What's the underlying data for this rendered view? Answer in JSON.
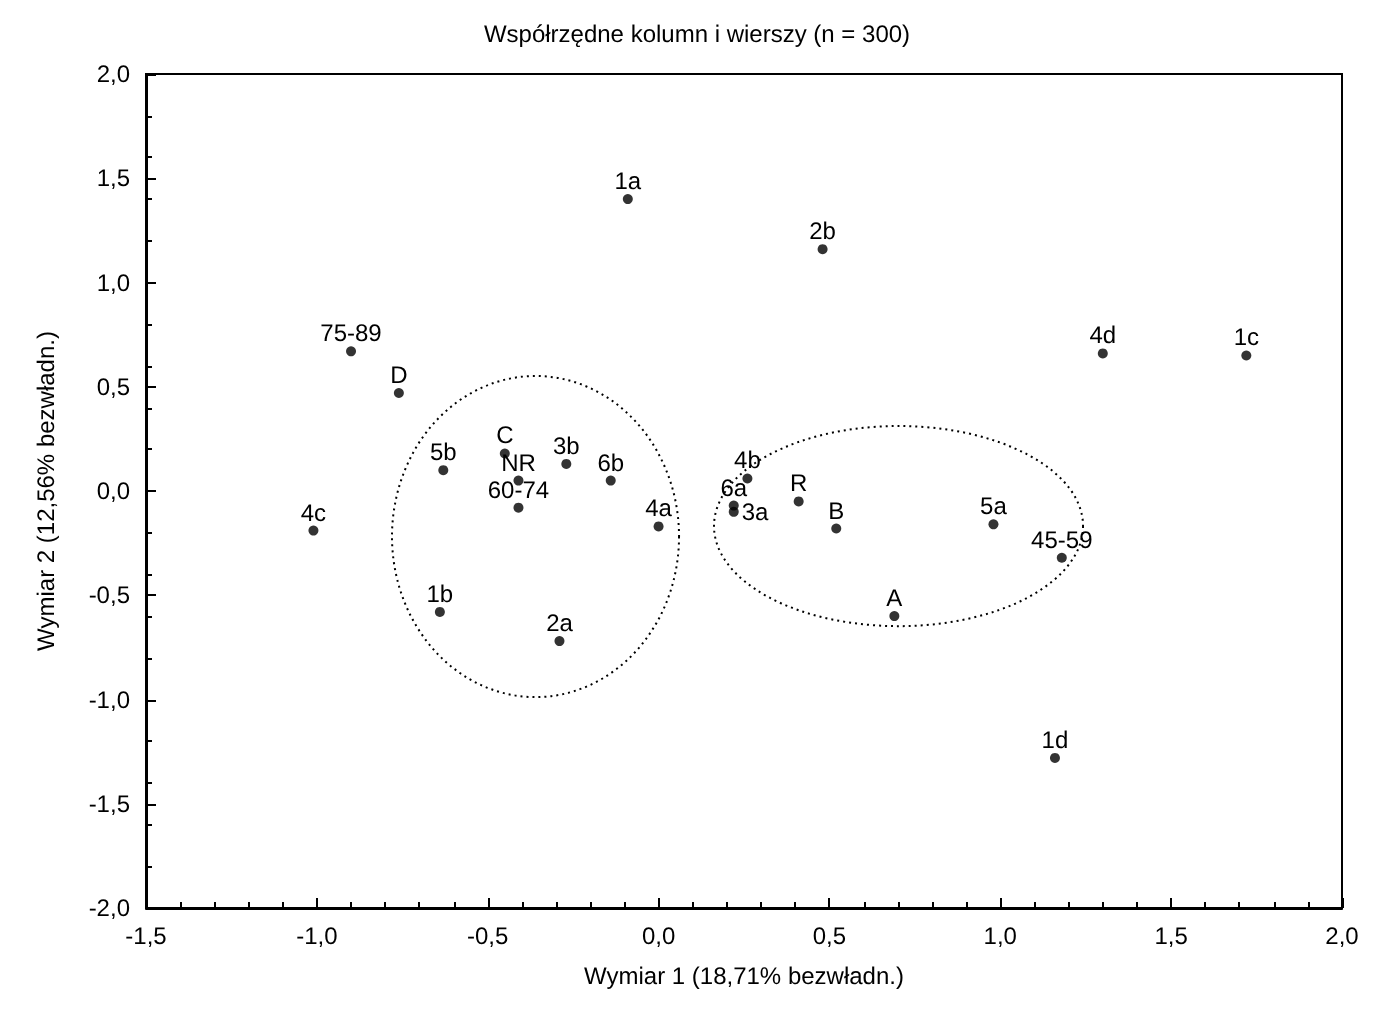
{
  "chart_data": {
    "type": "scatter",
    "title": "Współrzędne kolumn i wierszy (n = 300)",
    "xlabel": "Wymiar 1 (18,71% bezwładn.)",
    "ylabel": "Wymiar 2 (12,56% bezwładn.)",
    "xlim": [
      -1.5,
      2.0
    ],
    "ylim": [
      -2.0,
      2.0
    ],
    "xticks": [
      {
        "value": -1.5,
        "label": "-1,5"
      },
      {
        "value": -1.0,
        "label": "-1,0"
      },
      {
        "value": -0.5,
        "label": "-0,5"
      },
      {
        "value": 0,
        "label": "0,0"
      },
      {
        "value": 0.5,
        "label": "0,5"
      },
      {
        "value": 1.0,
        "label": "1,0"
      },
      {
        "value": 1.5,
        "label": "1,5"
      },
      {
        "value": 2.0,
        "label": "2,0"
      }
    ],
    "yticks": [
      {
        "value": -2.0,
        "label": "-2,0"
      },
      {
        "value": -1.5,
        "label": "-1,5"
      },
      {
        "value": -1.0,
        "label": "-1,0"
      },
      {
        "value": -0.5,
        "label": "-0,5"
      },
      {
        "value": 0,
        "label": "0,0"
      },
      {
        "value": 0.5,
        "label": "0,5"
      },
      {
        "value": 1.0,
        "label": "1,0"
      },
      {
        "value": 1.5,
        "label": "1,5"
      },
      {
        "value": 2.0,
        "label": "2,0"
      }
    ],
    "grid": false,
    "marker": "circle",
    "series": [
      {
        "color": "#000000",
        "x": [
          -0.09,
          0.48,
          -0.9,
          -0.76,
          -0.63,
          -0.45,
          -0.41,
          -0.41,
          -0.27,
          -0.14,
          0.0,
          -1.01,
          -0.64,
          -0.29,
          0.26,
          0.22,
          0.22,
          0.41,
          0.52,
          0.98,
          1.18,
          0.69,
          1.3,
          1.72,
          1.16
        ],
        "values": [
          1.4,
          1.16,
          0.67,
          0.47,
          0.1,
          0.18,
          0.05,
          -0.08,
          0.13,
          0.05,
          -0.17,
          -0.19,
          -0.58,
          -0.72,
          0.06,
          -0.07,
          -0.1,
          -0.05,
          -0.18,
          -0.16,
          -0.32,
          -0.6,
          0.66,
          0.65,
          -1.28
        ]
      }
    ],
    "annotations": [
      {
        "text": "1a",
        "x": -0.09,
        "y": 1.4
      },
      {
        "text": "2b",
        "x": 0.48,
        "y": 1.16
      },
      {
        "text": "75-89",
        "x": -0.9,
        "y": 0.67
      },
      {
        "text": "D",
        "x": -0.76,
        "y": 0.47
      },
      {
        "text": "5b",
        "x": -0.63,
        "y": 0.1
      },
      {
        "text": "C",
        "x": -0.45,
        "y": 0.18
      },
      {
        "text": "NR",
        "x": -0.41,
        "y": 0.05
      },
      {
        "text": "60-74",
        "x": -0.41,
        "y": -0.08
      },
      {
        "text": "3b",
        "x": -0.27,
        "y": 0.13
      },
      {
        "text": "6b",
        "x": -0.14,
        "y": 0.05
      },
      {
        "text": "4a",
        "x": 0.0,
        "y": -0.17
      },
      {
        "text": "4c",
        "x": -1.01,
        "y": -0.19
      },
      {
        "text": "1b",
        "x": -0.64,
        "y": -0.58
      },
      {
        "text": "2a",
        "x": -0.29,
        "y": -0.72
      },
      {
        "text": "4b",
        "x": 0.26,
        "y": 0.06
      },
      {
        "text": "6a",
        "x": 0.22,
        "y": -0.07
      },
      {
        "text": "3a",
        "x": 0.22,
        "y": -0.1
      },
      {
        "text": "R",
        "x": 0.41,
        "y": -0.05
      },
      {
        "text": "B",
        "x": 0.52,
        "y": -0.18
      },
      {
        "text": "5a",
        "x": 0.98,
        "y": -0.16
      },
      {
        "text": "45-59",
        "x": 1.18,
        "y": -0.32
      },
      {
        "text": "A",
        "x": 0.69,
        "y": -0.6
      },
      {
        "text": "4d",
        "x": 1.3,
        "y": 0.66
      },
      {
        "text": "1c",
        "x": 1.72,
        "y": 0.65
      },
      {
        "text": "1d",
        "x": 1.16,
        "y": -1.28
      }
    ]
  }
}
